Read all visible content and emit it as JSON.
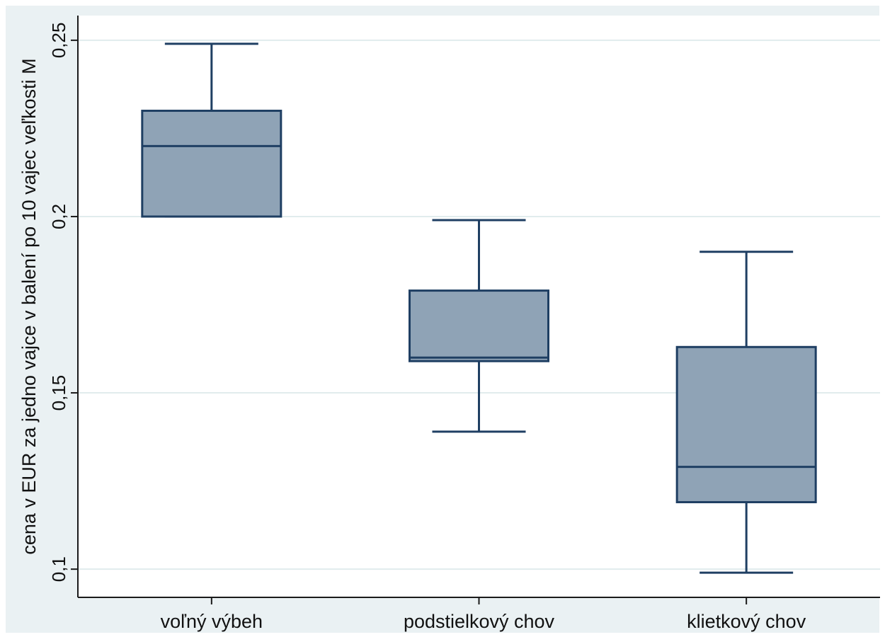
{
  "chart_data": {
    "type": "box",
    "title": "",
    "xlabel": "",
    "ylabel": "cena v EUR za jedno vajce v balení po 10 vajec veľkosti M",
    "ylim": [
      0.092,
      0.257
    ],
    "yticks": [
      0.1,
      0.15,
      0.2,
      0.25
    ],
    "ytick_labels": [
      "0,1",
      "0,15",
      "0,2",
      "0,25"
    ],
    "grid": true,
    "categories": [
      "voľný výbeh",
      "podstielkový chov",
      "klietkový chov"
    ],
    "boxes": [
      {
        "category": "voľný výbeh",
        "whisker_low": 0.2,
        "q1": 0.2,
        "median": 0.22,
        "q3": 0.23,
        "whisker_high": 0.249
      },
      {
        "category": "podstielkový chov",
        "whisker_low": 0.139,
        "q1": 0.159,
        "median": 0.16,
        "q3": 0.179,
        "whisker_high": 0.199
      },
      {
        "category": "klietkový chov",
        "whisker_low": 0.099,
        "q1": 0.119,
        "median": 0.129,
        "q3": 0.163,
        "whisker_high": 0.19
      }
    ],
    "colors": {
      "box_fill": "#8fa3b6",
      "box_stroke": "#1f3f63",
      "plot_bg": "#ffffff",
      "frame_bg": "#eaf1f3",
      "grid": "#e1eced",
      "axis": "#1a1a1a"
    }
  }
}
